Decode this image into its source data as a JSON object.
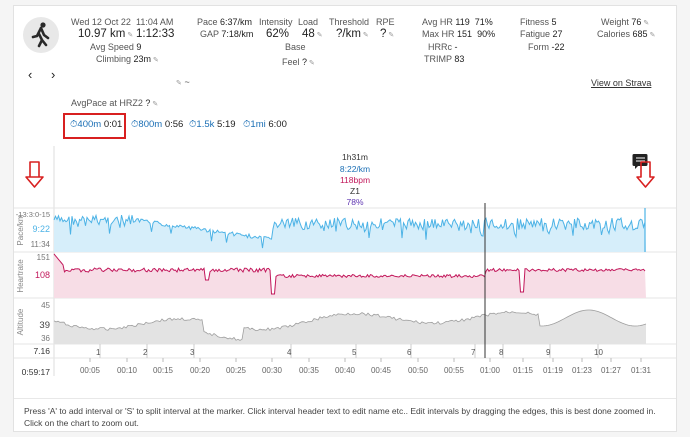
{
  "activity": {
    "date": "Wed 12 Oct 22",
    "time": "11:04 AM",
    "distance": "10.97 km",
    "duration": "1:12:33",
    "avg_speed_label": "Avg Speed",
    "avg_speed": "9",
    "climbing_label": "Climbing",
    "climbing": "23m",
    "tilde": "~"
  },
  "stats": {
    "pace_label": "Pace",
    "pace": "6:37/km",
    "gap_label": "GAP",
    "gap": "7:18/km",
    "intensity_label": "Intensity",
    "intensity": "62%",
    "load_label": "Load",
    "load": "48",
    "base_label": "Base",
    "feel_label": "Feel",
    "feel": "?",
    "threshold_label": "Threshold",
    "threshold": "?/km",
    "rpe_label": "RPE",
    "rpe": "?",
    "avghr_label": "Avg HR",
    "avghr": "119",
    "avghr_pct": "71%",
    "maxhr_label": "Max HR",
    "maxhr": "151",
    "maxhr_pct": "90%",
    "hrrc_label": "HRRc",
    "hrrc": "-",
    "trimp_label": "TRIMP",
    "trimp": "83",
    "fitness_label": "Fitness",
    "fitness": "5",
    "fatigue_label": "Fatigue",
    "fatigue": "27",
    "form_label": "Form",
    "form": "-22",
    "weight_label": "Weight",
    "weight": "76",
    "calories_label": "Calories",
    "calories": "685"
  },
  "nav": {
    "prev": "‹",
    "next": "›",
    "view_strava": "View on Strava"
  },
  "avgpace": {
    "label": "AvgPace at HRZ2",
    "value": "?"
  },
  "laps": [
    {
      "dist": "400m",
      "time": "0:01"
    },
    {
      "dist": "800m",
      "time": "0:56"
    },
    {
      "dist": "1.5k",
      "time": "5:19"
    },
    {
      "dist": "1mi",
      "time": "6:00"
    }
  ],
  "tooltip": {
    "duration": "1h31m",
    "pace": "8:22/km",
    "hr": "118bpm",
    "zone": "Z1",
    "pct": "78%"
  },
  "chart_data": {
    "type": "line",
    "pace": {
      "axis_label": "Pace/km",
      "ticks": [
        "-13:3:0-15",
        "9:22",
        "11:34"
      ],
      "current": "9:22"
    },
    "heartrate": {
      "axis_label": "Heartrate",
      "ticks": [
        "151",
        "108"
      ],
      "current": "108"
    },
    "altitude": {
      "axis_label": "Altitude",
      "ticks": [
        "45",
        "39",
        "36"
      ],
      "current": "39"
    },
    "distance_start": "7.16",
    "interval_labels": [
      "1",
      "2",
      "3",
      "4",
      "5",
      "6",
      "7",
      "8",
      "9",
      "10"
    ],
    "time_start": "0:59:17",
    "time_ticks": [
      "00:05",
      "00:10",
      "00:15",
      "00:20",
      "00:25",
      "00:30",
      "00:35",
      "00:40",
      "00:45",
      "00:50",
      "00:55",
      "01:00",
      "01:15",
      "01:19",
      "01:23",
      "01:27",
      "01:31"
    ]
  },
  "colors": {
    "pace": "#4db3e6",
    "hr": "#c2185b",
    "altitude": "#9e9e9e",
    "zone": "#5e35b1",
    "arrow": "#d82020"
  },
  "footer": {
    "help": "Press 'A' to add interval or 'S' to split interval at the marker. Click interval header text to edit name etc.. Edit intervals by dragging the edges, this is best done zoomed in. Click on the chart to zoom out."
  },
  "icons": {
    "avatar": "runner-icon",
    "comment": "comment-icon"
  }
}
